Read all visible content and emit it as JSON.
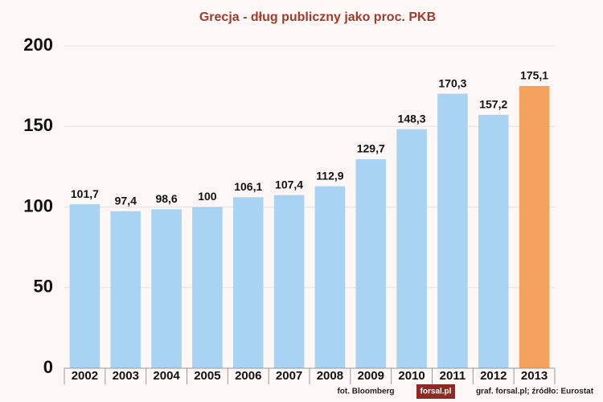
{
  "chart_data": {
    "type": "bar",
    "title": "Grecja - dług publiczny jako proc. PKB",
    "categories": [
      "2002",
      "2003",
      "2004",
      "2005",
      "2006",
      "2007",
      "2008",
      "2009",
      "2010",
      "2011",
      "2012",
      "2013"
    ],
    "values": [
      101.7,
      97.4,
      98.6,
      100,
      106.1,
      107.4,
      112.9,
      129.7,
      148.3,
      170.3,
      157.2,
      175.1
    ],
    "value_labels": [
      "101,7",
      "97,4",
      "98,6",
      "100",
      "106,1",
      "107,4",
      "112,9",
      "129,7",
      "148,3",
      "170,3",
      "157,2",
      "175,1"
    ],
    "colors": [
      "#a8d3f3",
      "#a8d3f3",
      "#a8d3f3",
      "#a8d3f3",
      "#a8d3f3",
      "#a8d3f3",
      "#a8d3f3",
      "#a8d3f3",
      "#a8d3f3",
      "#a8d3f3",
      "#a8d3f3",
      "#f4a25e"
    ],
    "ylim": [
      0,
      200
    ],
    "yticks": [
      0,
      50,
      100,
      150,
      200
    ],
    "grid": true,
    "annotations": [
      "fot. Bloomberg",
      "forsal.pl",
      "graf. forsal.pl;  źródło: Eurostat"
    ]
  }
}
